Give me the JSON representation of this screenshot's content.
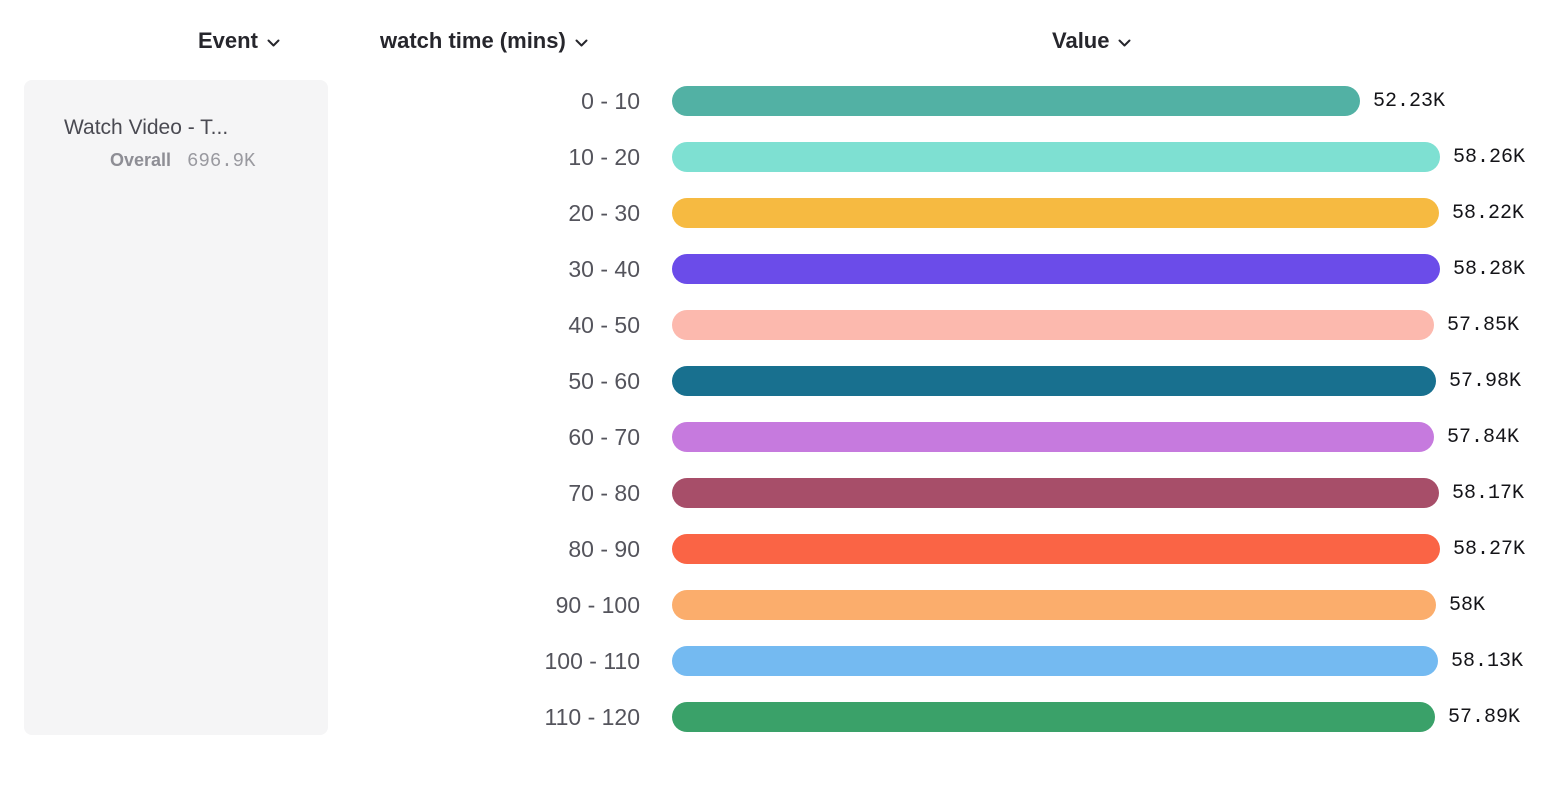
{
  "header": {
    "event_label": "Event",
    "watch_time_label": "watch time (mins)",
    "value_label": "Value"
  },
  "event_panel": {
    "event_name": "Watch Video - T...",
    "overall_label": "Overall",
    "overall_value": "696.9K"
  },
  "chart_data": {
    "type": "bar",
    "orientation": "horizontal",
    "title": "",
    "xlabel": "Value",
    "ylabel": "watch time (mins)",
    "categories": [
      "0 - 10",
      "10 - 20",
      "20 - 30",
      "30 - 40",
      "40 - 50",
      "50 - 60",
      "60 - 70",
      "70 - 80",
      "80 - 90",
      "90 - 100",
      "100 - 110",
      "110 - 120"
    ],
    "values": [
      52230,
      58260,
      58220,
      58280,
      57850,
      57980,
      57840,
      58170,
      58270,
      58000,
      58130,
      57890
    ],
    "value_labels": [
      "52.23K",
      "58.26K",
      "58.22K",
      "58.28K",
      "57.85K",
      "57.98K",
      "57.84K",
      "58.17K",
      "58.27K",
      "58K",
      "58.13K",
      "57.89K"
    ],
    "colors": [
      "#52b1a4",
      "#7ee0d2",
      "#f6ba41",
      "#6b4ce9",
      "#fcb9ae",
      "#18708f",
      "#c67ade",
      "#a74e69",
      "#fa6445",
      "#fbad6c",
      "#74baf1",
      "#3aa169"
    ],
    "xlim": [
      0,
      58280
    ],
    "grid": false,
    "legend": "none"
  }
}
